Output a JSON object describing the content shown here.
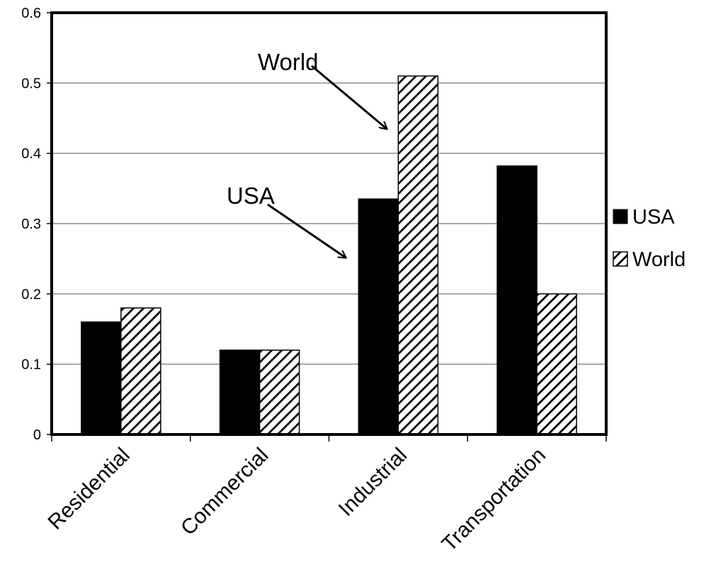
{
  "chart_data": {
    "type": "bar",
    "categories": [
      "Residential",
      "Commercial",
      "Industrial",
      "Transportation"
    ],
    "series": [
      {
        "name": "USA",
        "values": [
          0.16,
          0.12,
          0.335,
          0.382
        ],
        "fill": "solid",
        "color": "#000000"
      },
      {
        "name": "World",
        "values": [
          0.18,
          0.12,
          0.51,
          0.2
        ],
        "fill": "diagonal-hatch",
        "color": "#000000"
      }
    ],
    "ylim": [
      0,
      0.6
    ],
    "yticks": [
      "0",
      "0.1",
      "0.2",
      "0.3",
      "0.4",
      "0.5",
      "0.6"
    ],
    "grid": "horizontal",
    "legend": "right",
    "annotations": [
      {
        "text": "World",
        "points_to": "Industrial, World"
      },
      {
        "text": "USA",
        "points_to": "Industrial, USA"
      }
    ]
  }
}
